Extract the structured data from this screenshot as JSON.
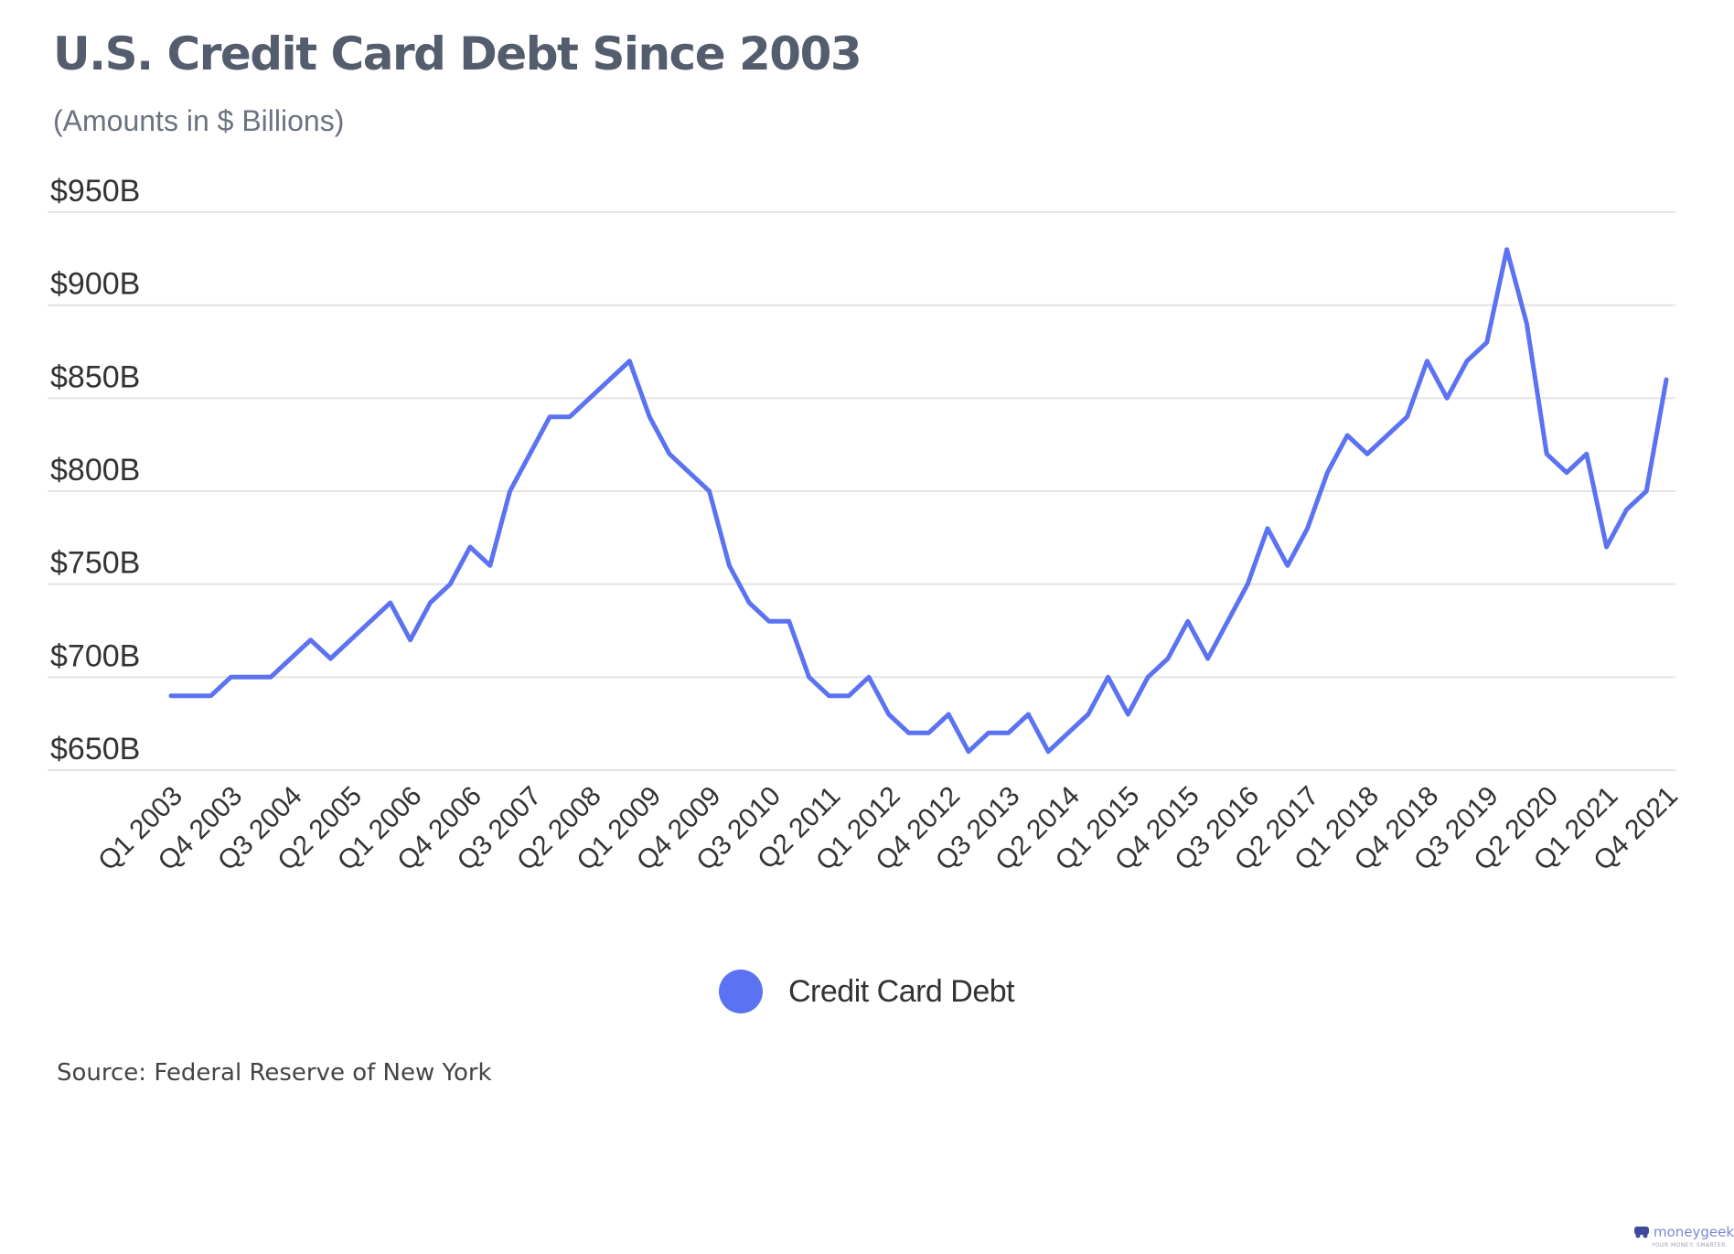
{
  "header": {
    "title": "U.S. Credit Card Debt Since 2003",
    "subtitle": "(Amounts in $ Billions)"
  },
  "source": "Source: Federal Reserve of New York",
  "brand": {
    "name": "moneygeek",
    "tagline": "YOUR MONEY. SMARTER."
  },
  "colors": {
    "line": "#5b72f2",
    "grid": "#e4e4e4",
    "title": "#545d6e"
  },
  "chart_data": {
    "type": "line",
    "title": "U.S. Credit Card Debt Since 2003",
    "subtitle": "(Amounts in $ Billions)",
    "xlabel": "",
    "ylabel": "",
    "ylim": [
      650,
      950
    ],
    "y_ticks": [
      650,
      700,
      750,
      800,
      850,
      900,
      950
    ],
    "y_tick_labels": [
      "$650B",
      "$700B",
      "$750B",
      "$800B",
      "$850B",
      "$900B",
      "$950B"
    ],
    "grid": true,
    "legend": "bottom-center",
    "x_tick_labels": [
      "Q1 2003",
      "Q4 2003",
      "Q3 2004",
      "Q2 2005",
      "Q1 2006",
      "Q4 2006",
      "Q3 2007",
      "Q2 2008",
      "Q1 2009",
      "Q4 2009",
      "Q3 2010",
      "Q2 2011",
      "Q1 2012",
      "Q4 2012",
      "Q3 2013",
      "Q2 2014",
      "Q1 2015",
      "Q4 2015",
      "Q3 2016",
      "Q2 2017",
      "Q1 2018",
      "Q4 2018",
      "Q3 2019",
      "Q2 2020",
      "Q1 2021",
      "Q4 2021"
    ],
    "x": [
      "Q1 2003",
      "Q2 2003",
      "Q3 2003",
      "Q4 2003",
      "Q1 2004",
      "Q2 2004",
      "Q3 2004",
      "Q4 2004",
      "Q1 2005",
      "Q2 2005",
      "Q3 2005",
      "Q4 2005",
      "Q1 2006",
      "Q2 2006",
      "Q3 2006",
      "Q4 2006",
      "Q1 2007",
      "Q2 2007",
      "Q3 2007",
      "Q4 2007",
      "Q1 2008",
      "Q2 2008",
      "Q3 2008",
      "Q4 2008",
      "Q1 2009",
      "Q2 2009",
      "Q3 2009",
      "Q4 2009",
      "Q1 2010",
      "Q2 2010",
      "Q3 2010",
      "Q4 2010",
      "Q1 2011",
      "Q2 2011",
      "Q3 2011",
      "Q4 2011",
      "Q1 2012",
      "Q2 2012",
      "Q3 2012",
      "Q4 2012",
      "Q1 2013",
      "Q2 2013",
      "Q3 2013",
      "Q4 2013",
      "Q1 2014",
      "Q2 2014",
      "Q3 2014",
      "Q4 2014",
      "Q1 2015",
      "Q2 2015",
      "Q3 2015",
      "Q4 2015",
      "Q1 2016",
      "Q2 2016",
      "Q3 2016",
      "Q4 2016",
      "Q1 2017",
      "Q2 2017",
      "Q3 2017",
      "Q4 2017",
      "Q1 2018",
      "Q2 2018",
      "Q3 2018",
      "Q4 2018",
      "Q1 2019",
      "Q2 2019",
      "Q3 2019",
      "Q4 2019",
      "Q1 2020",
      "Q2 2020",
      "Q3 2020",
      "Q4 2020",
      "Q1 2021",
      "Q2 2021",
      "Q3 2021",
      "Q4 2021"
    ],
    "series": [
      {
        "name": "Credit Card Debt",
        "values": [
          690,
          690,
          690,
          700,
          700,
          700,
          710,
          720,
          710,
          720,
          730,
          740,
          720,
          740,
          750,
          770,
          760,
          800,
          820,
          840,
          840,
          850,
          860,
          870,
          840,
          820,
          810,
          800,
          760,
          740,
          730,
          730,
          700,
          690,
          690,
          700,
          680,
          670,
          670,
          680,
          660,
          670,
          670,
          680,
          660,
          670,
          680,
          700,
          680,
          700,
          710,
          730,
          710,
          730,
          750,
          780,
          760,
          780,
          810,
          830,
          820,
          830,
          840,
          870,
          850,
          870,
          880,
          930,
          890,
          820,
          810,
          820,
          770,
          790,
          800,
          860
        ]
      }
    ]
  }
}
